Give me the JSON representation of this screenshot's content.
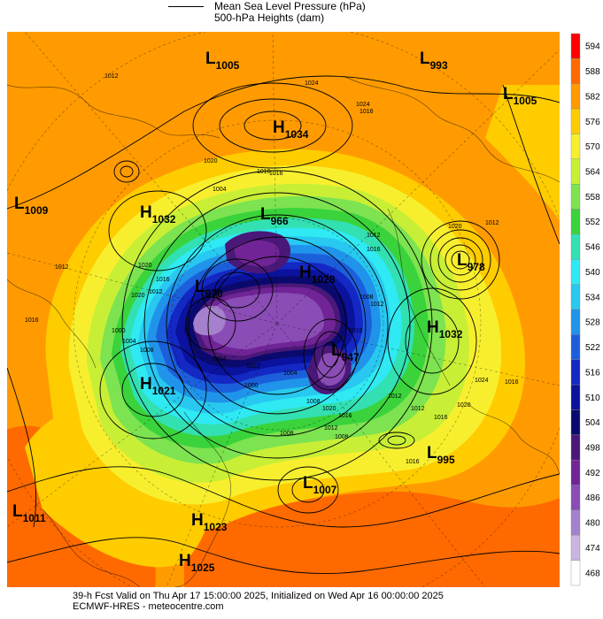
{
  "header": {
    "pressure_label": "Mean Sea Level Pressure (hPa)",
    "heights_label": "500-hPa Heights (dam)"
  },
  "footer": {
    "line1": "39-h Fcst Valid on Thu Apr 17 15:00:00 2025, Initialized on Wed Apr 16 00:00:00 2025",
    "line2": "ECMWF-HRES - meteocentre.com"
  },
  "colorbar": {
    "levels": [
      "594",
      "588",
      "582",
      "576",
      "570",
      "564",
      "558",
      "552",
      "546",
      "540",
      "534",
      "528",
      "522",
      "516",
      "510",
      "504",
      "498",
      "492",
      "486",
      "480",
      "474",
      "468"
    ],
    "colors": [
      "#ff0000",
      "#ff6a00",
      "#ff9b00",
      "#ffcc00",
      "#f7ef2e",
      "#c8ef35",
      "#7de350",
      "#3ad33b",
      "#32e0b2",
      "#2fe9f3",
      "#28c8f0",
      "#2094ea",
      "#1c5fdb",
      "#1428c3",
      "#0b129d",
      "#0a0a6e",
      "#4a1878",
      "#702496",
      "#8a4cb5",
      "#a580cc",
      "#c9b4e2",
      "#ffffff"
    ]
  },
  "map": {
    "pressure_centers": [
      {
        "type": "L",
        "value": "1005"
      },
      {
        "type": "L",
        "value": "993"
      },
      {
        "type": "L",
        "value": "1005"
      },
      {
        "type": "H",
        "value": "1034"
      },
      {
        "type": "L",
        "value": "1009"
      },
      {
        "type": "H",
        "value": "1032"
      },
      {
        "type": "L",
        "value": "966"
      },
      {
        "type": "L",
        "value": "978"
      },
      {
        "type": "H",
        "value": "1028"
      },
      {
        "type": "L",
        "value": "970"
      },
      {
        "type": "H",
        "value": "1032"
      },
      {
        "type": "L",
        "value": "947"
      },
      {
        "type": "H",
        "value": "1021"
      },
      {
        "type": "L",
        "value": "995"
      },
      {
        "type": "L",
        "value": "1007"
      },
      {
        "type": "L",
        "value": "1011"
      },
      {
        "type": "H",
        "value": "1023"
      },
      {
        "type": "H",
        "value": "1025"
      }
    ],
    "isobar_labels": [
      "1012",
      "1024",
      "1016",
      "1016",
      "1020",
      "1016",
      "1012",
      "1024",
      "1004",
      "1016",
      "1008",
      "1012",
      "1020",
      "1004",
      "1012",
      "1016",
      "1000",
      "1012",
      "1008",
      "1008",
      "1012",
      "1016",
      "1020",
      "1024",
      "1016",
      "1012",
      "1020",
      "1000",
      "1004",
      "1008",
      "1012",
      "1016",
      "1020",
      "1004",
      "1008",
      "1012",
      "1016",
      "1020",
      "1016",
      "1012",
      "1016"
    ]
  }
}
